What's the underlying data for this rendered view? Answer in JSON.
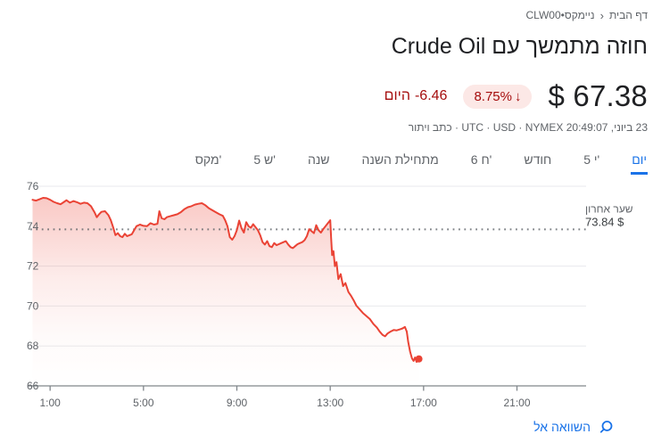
{
  "icons": {
    "arrow_down": "↓",
    "breadcrumb_chevron": "‹",
    "search": "search-icon"
  },
  "colors": {
    "accent_blue": "#1a73e8",
    "negative_red": "#a50e0e",
    "badge_bg": "#fce8e6",
    "chart_line_red": "#ea4335",
    "text_primary": "#202124",
    "text_secondary": "#5f6368"
  },
  "breadcrumb": {
    "home": "דף הבית",
    "current": "CLW00•ניימקס"
  },
  "header": {
    "title": "חוזה מתמשך עם Crude Oil"
  },
  "quote": {
    "price": "$ 67.38",
    "change_percent": "8.75%",
    "change_value": "-6.46",
    "change_period": "היום",
    "meta_text": "23 ביוני, 20:49:07 UTC · USD · NYMEX ·",
    "disclaimer": "כתב ויתור"
  },
  "tabs": {
    "items": [
      {
        "id": "day",
        "label": "יום",
        "selected": true
      },
      {
        "id": "5d",
        "label": "5 י'",
        "selected": false
      },
      {
        "id": "month",
        "label": "חודש",
        "selected": false
      },
      {
        "id": "6m",
        "label": "6 ח'",
        "selected": false
      },
      {
        "id": "ytd",
        "label": "מתחילת השנה",
        "selected": false
      },
      {
        "id": "year",
        "label": "שנה",
        "selected": false
      },
      {
        "id": "5y",
        "label": "5 ש'",
        "selected": false
      },
      {
        "id": "max",
        "label": "מקס'",
        "selected": false
      }
    ]
  },
  "compare_link": {
    "label": "השוואה אל"
  },
  "chart_data": {
    "type": "area",
    "title": "Crude Oil continuous contract intraday price",
    "line_color": "#ea4335",
    "grid_color": "#e8eaed",
    "axis_color": "#80868b",
    "label_color": "#5f6368",
    "x_axis": {
      "unit": "hour",
      "range": [
        0,
        24
      ],
      "ticks": [
        {
          "t": 1,
          "label": "1:00"
        },
        {
          "t": 5,
          "label": "5:00"
        },
        {
          "t": 9,
          "label": "9:00"
        },
        {
          "t": 13,
          "label": "13:00"
        },
        {
          "t": 17,
          "label": "17:00"
        },
        {
          "t": 21,
          "label": "21:00"
        }
      ]
    },
    "y_axis": {
      "range": [
        66,
        76
      ],
      "tick_labels": [
        66,
        68,
        70,
        72,
        74,
        76
      ],
      "solid_gridlines": [
        68,
        70,
        72,
        76
      ]
    },
    "previous_close": {
      "value": 73.84,
      "label": "שער אחרון",
      "price_label": "$ 73.84"
    },
    "last_price": 67.38,
    "series": [
      {
        "name": "price",
        "points": [
          [
            0.25,
            75.32
          ],
          [
            0.4,
            75.28
          ],
          [
            0.55,
            75.35
          ],
          [
            0.7,
            75.42
          ],
          [
            0.85,
            75.4
          ],
          [
            1.0,
            75.32
          ],
          [
            1.15,
            75.22
          ],
          [
            1.3,
            75.15
          ],
          [
            1.45,
            75.1
          ],
          [
            1.6,
            75.22
          ],
          [
            1.7,
            75.3
          ],
          [
            1.85,
            75.18
          ],
          [
            2.0,
            75.26
          ],
          [
            2.15,
            75.2
          ],
          [
            2.3,
            75.12
          ],
          [
            2.45,
            75.18
          ],
          [
            2.6,
            75.15
          ],
          [
            2.75,
            75.0
          ],
          [
            2.9,
            74.7
          ],
          [
            3.0,
            74.45
          ],
          [
            3.1,
            74.6
          ],
          [
            3.2,
            74.72
          ],
          [
            3.35,
            74.75
          ],
          [
            3.5,
            74.55
          ],
          [
            3.6,
            74.3
          ],
          [
            3.7,
            73.95
          ],
          [
            3.8,
            73.55
          ],
          [
            3.9,
            73.65
          ],
          [
            4.0,
            73.5
          ],
          [
            4.1,
            73.45
          ],
          [
            4.2,
            73.62
          ],
          [
            4.3,
            73.5
          ],
          [
            4.4,
            73.55
          ],
          [
            4.5,
            73.6
          ],
          [
            4.6,
            73.8
          ],
          [
            4.7,
            74.0
          ],
          [
            4.85,
            74.08
          ],
          [
            5.0,
            74.02
          ],
          [
            5.15,
            74.0
          ],
          [
            5.3,
            74.15
          ],
          [
            5.45,
            74.08
          ],
          [
            5.6,
            74.12
          ],
          [
            5.68,
            74.75
          ],
          [
            5.78,
            74.4
          ],
          [
            5.9,
            74.35
          ],
          [
            6.0,
            74.45
          ],
          [
            6.15,
            74.5
          ],
          [
            6.3,
            74.55
          ],
          [
            6.45,
            74.6
          ],
          [
            6.6,
            74.7
          ],
          [
            6.75,
            74.85
          ],
          [
            6.9,
            74.95
          ],
          [
            7.05,
            75.0
          ],
          [
            7.2,
            75.08
          ],
          [
            7.35,
            75.12
          ],
          [
            7.5,
            75.15
          ],
          [
            7.65,
            75.05
          ],
          [
            7.8,
            74.9
          ],
          [
            7.95,
            74.8
          ],
          [
            8.1,
            74.7
          ],
          [
            8.25,
            74.6
          ],
          [
            8.4,
            74.52
          ],
          [
            8.5,
            74.3
          ],
          [
            8.6,
            74.0
          ],
          [
            8.7,
            73.45
          ],
          [
            8.8,
            73.32
          ],
          [
            8.9,
            73.5
          ],
          [
            9.0,
            73.8
          ],
          [
            9.1,
            74.28
          ],
          [
            9.2,
            73.9
          ],
          [
            9.3,
            73.68
          ],
          [
            9.4,
            74.2
          ],
          [
            9.5,
            74.0
          ],
          [
            9.6,
            73.92
          ],
          [
            9.7,
            74.1
          ],
          [
            9.8,
            73.95
          ],
          [
            9.9,
            73.8
          ],
          [
            10.0,
            73.55
          ],
          [
            10.1,
            73.2
          ],
          [
            10.2,
            73.08
          ],
          [
            10.3,
            73.25
          ],
          [
            10.4,
            73.0
          ],
          [
            10.5,
            72.95
          ],
          [
            10.6,
            73.15
          ],
          [
            10.7,
            73.05
          ],
          [
            10.8,
            73.1
          ],
          [
            10.9,
            73.15
          ],
          [
            11.0,
            73.2
          ],
          [
            11.1,
            73.25
          ],
          [
            11.2,
            73.08
          ],
          [
            11.3,
            72.95
          ],
          [
            11.4,
            72.9
          ],
          [
            11.5,
            73.0
          ],
          [
            11.6,
            73.1
          ],
          [
            11.7,
            73.15
          ],
          [
            11.8,
            73.2
          ],
          [
            11.9,
            73.3
          ],
          [
            12.0,
            73.5
          ],
          [
            12.1,
            73.85
          ],
          [
            12.2,
            73.75
          ],
          [
            12.3,
            73.65
          ],
          [
            12.4,
            74.05
          ],
          [
            12.5,
            73.8
          ],
          [
            12.6,
            73.68
          ],
          [
            12.7,
            73.85
          ],
          [
            12.8,
            74.0
          ],
          [
            12.9,
            74.15
          ],
          [
            13.0,
            74.3
          ],
          [
            13.04,
            73.4
          ],
          [
            13.08,
            72.55
          ],
          [
            13.14,
            72.75
          ],
          [
            13.2,
            72.0
          ],
          [
            13.27,
            72.2
          ],
          [
            13.35,
            71.35
          ],
          [
            13.45,
            71.6
          ],
          [
            13.55,
            71.0
          ],
          [
            13.65,
            71.15
          ],
          [
            13.78,
            70.7
          ],
          [
            13.9,
            70.5
          ],
          [
            14.0,
            70.3
          ],
          [
            14.12,
            70.02
          ],
          [
            14.25,
            69.85
          ],
          [
            14.4,
            69.65
          ],
          [
            14.55,
            69.5
          ],
          [
            14.7,
            69.35
          ],
          [
            14.85,
            69.1
          ],
          [
            15.0,
            68.92
          ],
          [
            15.12,
            68.72
          ],
          [
            15.25,
            68.55
          ],
          [
            15.35,
            68.48
          ],
          [
            15.45,
            68.62
          ],
          [
            15.58,
            68.72
          ],
          [
            15.72,
            68.8
          ],
          [
            15.85,
            68.78
          ],
          [
            16.0,
            68.84
          ],
          [
            16.1,
            68.88
          ],
          [
            16.2,
            68.95
          ],
          [
            16.28,
            68.72
          ],
          [
            16.34,
            68.2
          ],
          [
            16.42,
            67.72
          ],
          [
            16.5,
            67.38
          ],
          [
            16.57,
            67.25
          ],
          [
            16.63,
            67.42
          ],
          [
            16.7,
            67.2
          ],
          [
            16.8,
            67.35
          ]
        ]
      }
    ]
  }
}
